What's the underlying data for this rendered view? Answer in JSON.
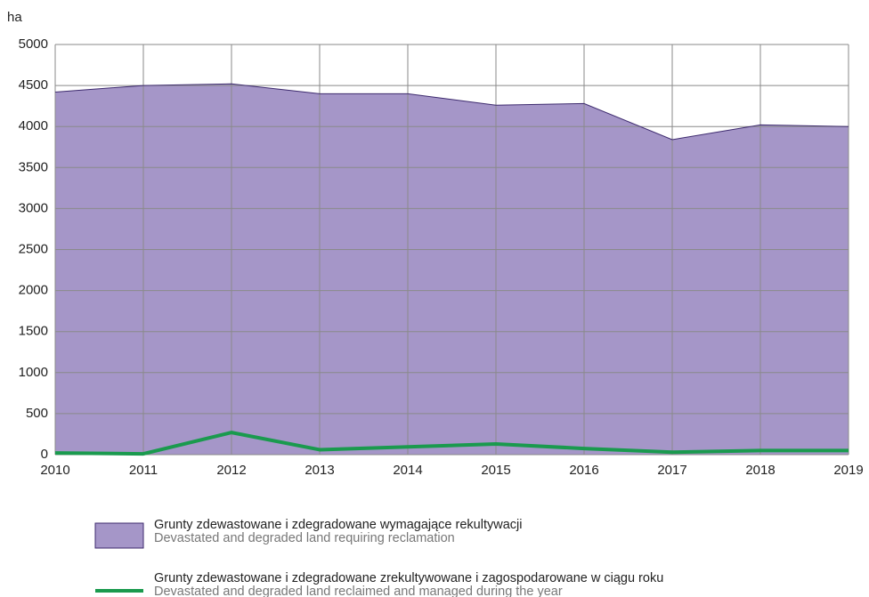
{
  "chart_data": {
    "type": "area-line",
    "y_label": "ha",
    "x": [
      2010,
      2011,
      2012,
      2013,
      2014,
      2015,
      2016,
      2017,
      2018,
      2019
    ],
    "xlim": [
      2010,
      2019
    ],
    "xticks": [
      2010,
      2011,
      2012,
      2013,
      2014,
      2015,
      2016,
      2017,
      2018,
      2019
    ],
    "ylim": [
      0,
      5000
    ],
    "yticks": [
      0,
      500,
      1000,
      1500,
      2000,
      2500,
      3000,
      3500,
      4000,
      4500,
      5000
    ],
    "grid": true,
    "legend": "bottom",
    "series": [
      {
        "name": "Grunty zdewastowane i zdegradowane wymagające rekultywacji",
        "name_en": "Devastated and degraded land requiring reclamation",
        "kind": "area",
        "color": "#a596c8",
        "edge_color": "#3d2a6e",
        "values": [
          4420,
          4500,
          4520,
          4400,
          4400,
          4260,
          4280,
          3840,
          4020,
          4000
        ]
      },
      {
        "name": "Grunty zdewastowane i zdegradowane zrekultywowane i zagospodarowane w ciągu roku",
        "name_en": "Devastated and degraded land reclaimed and managed during the year",
        "kind": "line",
        "color": "#1a9a4e",
        "values": [
          20,
          10,
          270,
          60,
          95,
          130,
          75,
          30,
          50,
          50
        ]
      }
    ]
  }
}
